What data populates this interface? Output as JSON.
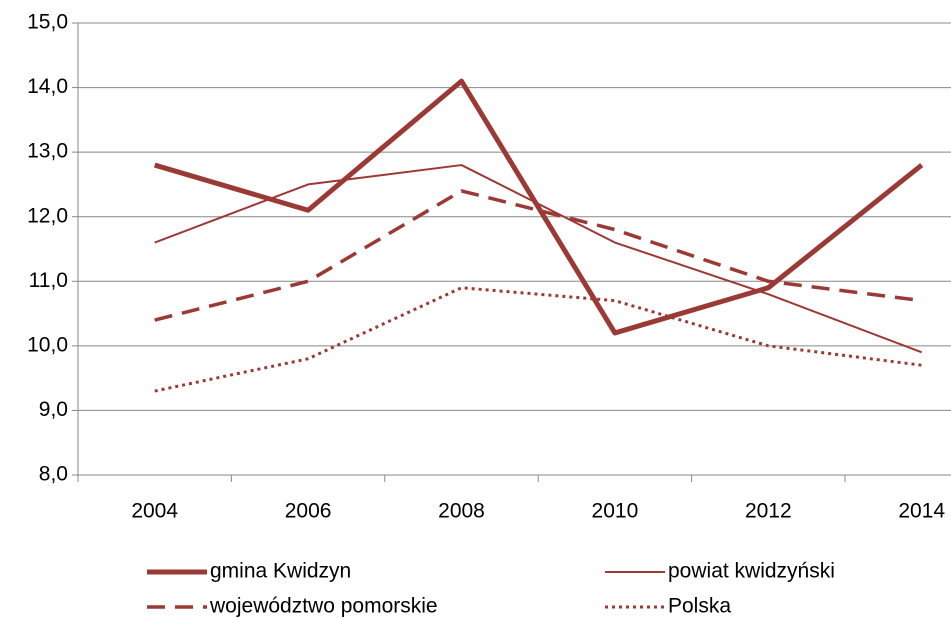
{
  "chart_data": {
    "type": "line",
    "categories": [
      "2004",
      "2006",
      "2008",
      "2010",
      "2012",
      "2014"
    ],
    "series": [
      {
        "name": "gmina Kwidzyn",
        "color": "#9b3a35",
        "style": "solid",
        "width": 5,
        "values": [
          12.8,
          12.1,
          14.1,
          10.2,
          10.9,
          12.8
        ]
      },
      {
        "name": "powiat kwidzyński",
        "color": "#9b3a35",
        "style": "solid",
        "width": 2,
        "values": [
          11.6,
          12.5,
          12.8,
          11.6,
          10.8,
          9.9
        ]
      },
      {
        "name": "województwo pomorskie",
        "color": "#9b3a35",
        "style": "dashed",
        "width": 3.5,
        "values": [
          10.4,
          11.0,
          12.4,
          11.8,
          11.0,
          10.7
        ]
      },
      {
        "name": "Polska",
        "color": "#9b3a35",
        "style": "dotted",
        "width": 3,
        "values": [
          9.3,
          9.8,
          10.9,
          10.7,
          10.0,
          9.7
        ]
      }
    ],
    "ylim": [
      8,
      15
    ],
    "yticks": [
      {
        "value": 8,
        "label": "8,0"
      },
      {
        "value": 9,
        "label": "9,0"
      },
      {
        "value": 10,
        "label": "10,0"
      },
      {
        "value": 11,
        "label": "11,0"
      },
      {
        "value": 12,
        "label": "12,0"
      },
      {
        "value": 13,
        "label": "13,0"
      },
      {
        "value": 14,
        "label": "14,0"
      },
      {
        "value": 15,
        "label": "15,0"
      }
    ],
    "grid": true,
    "legend": "bottom"
  }
}
